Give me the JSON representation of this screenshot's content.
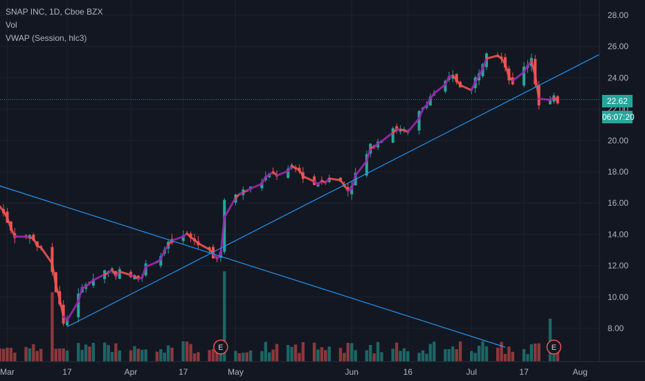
{
  "legend": {
    "symbol": "SNAP INC, 1D, Cboe BZX",
    "volume": "Vol",
    "vwap": "VWAP (Session, hlc3)"
  },
  "price_tag": {
    "value": "22.62",
    "countdown": "06:07:20"
  },
  "colors": {
    "background": "#131722",
    "grid": "#1e222d",
    "up": "#26a69a",
    "down": "#ef5350",
    "vwap": "#9c27b0",
    "trendline": "#2196f3",
    "axis_text": "#b2b5be",
    "last_price": "#26a69a"
  },
  "chart_data": {
    "type": "candlestick",
    "title": "SNAP INC, 1D, Cboe BZX",
    "y_ticks": [
      "8.00",
      "10.00",
      "12.00",
      "14.00",
      "16.00",
      "18.00",
      "20.00",
      "22.00",
      "24.00",
      "26.00",
      "28.00"
    ],
    "ylim": [
      6.8,
      29.0
    ],
    "x_ticks": [
      {
        "label": "Mar",
        "date": "2023-03-01"
      },
      {
        "label": "17",
        "date": "2023-03-17"
      },
      {
        "label": "Apr",
        "date": "2023-04-03"
      },
      {
        "label": "17",
        "date": "2023-04-17"
      },
      {
        "label": "May",
        "date": "2023-05-01"
      },
      {
        "label": "Jun",
        "date": "2023-06-01"
      },
      {
        "label": "16",
        "date": "2023-06-16"
      },
      {
        "label": "Jul",
        "date": "2023-07-03"
      },
      {
        "label": "17",
        "date": "2023-07-17"
      },
      {
        "label": "Aug",
        "date": "2023-08-01"
      }
    ],
    "key_closes": [
      {
        "date": "2023-02-27",
        "close": 15.8
      },
      {
        "date": "2023-03-03",
        "close": 14.0
      },
      {
        "date": "2023-03-08",
        "close": 13.8
      },
      {
        "date": "2023-03-13",
        "close": 11.6
      },
      {
        "date": "2023-03-16",
        "close": 8.3
      },
      {
        "date": "2023-03-22",
        "close": 10.9
      },
      {
        "date": "2023-03-28",
        "close": 11.8
      },
      {
        "date": "2023-04-04",
        "close": 11.2
      },
      {
        "date": "2023-04-10",
        "close": 12.5
      },
      {
        "date": "2023-04-14",
        "close": 13.5
      },
      {
        "date": "2023-04-18",
        "close": 13.9
      },
      {
        "date": "2023-04-24",
        "close": 12.9
      },
      {
        "date": "2023-04-27",
        "close": 12.6
      },
      {
        "date": "2023-04-28",
        "close": 16.2
      },
      {
        "date": "2023-05-05",
        "close": 16.9
      },
      {
        "date": "2023-05-09",
        "close": 17.6
      },
      {
        "date": "2023-05-17",
        "close": 18.2
      },
      {
        "date": "2023-05-22",
        "close": 17.2
      },
      {
        "date": "2023-05-26",
        "close": 17.8
      },
      {
        "date": "2023-05-31",
        "close": 16.9
      },
      {
        "date": "2023-06-07",
        "close": 19.9
      },
      {
        "date": "2023-06-12",
        "close": 20.9
      },
      {
        "date": "2023-06-16",
        "close": 20.3
      },
      {
        "date": "2023-06-21",
        "close": 22.6
      },
      {
        "date": "2023-06-28",
        "close": 24.0
      },
      {
        "date": "2023-07-03",
        "close": 23.2
      },
      {
        "date": "2023-07-07",
        "close": 25.9
      },
      {
        "date": "2023-07-11",
        "close": 25.5
      },
      {
        "date": "2023-07-14",
        "close": 23.4
      },
      {
        "date": "2023-07-19",
        "close": 25.4
      },
      {
        "date": "2023-07-21",
        "close": 22.2
      },
      {
        "date": "2023-07-26",
        "close": 22.62
      }
    ],
    "volume_spike": {
      "date": "2023-04-28",
      "note": "largest volume bar after E"
    },
    "earnings_markers": [
      {
        "label": "E",
        "date": "2023-04-27"
      },
      {
        "label": "E",
        "date": "2023-07-25"
      }
    ],
    "trendlines": [
      {
        "from": {
          "date": "2023-02-27",
          "price": 17.1
        },
        "to": {
          "date": "2023-07-12",
          "price": 6.8
        }
      },
      {
        "from": {
          "date": "2023-03-17",
          "price": 8.1
        },
        "to": {
          "date": "2023-08-16",
          "price": 26.7
        }
      }
    ],
    "last_price": 22.62,
    "grid": true
  }
}
